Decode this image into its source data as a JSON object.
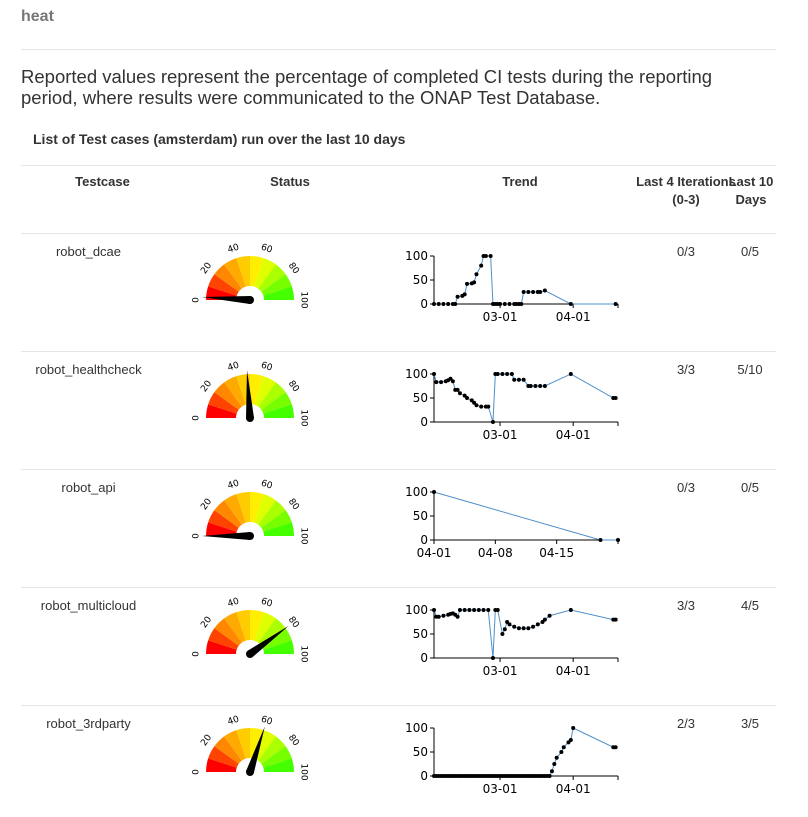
{
  "page": {
    "title": "heat",
    "description": "Reported values represent the percentage of completed CI tests during the reporting period, where results were communicated to the ONAP Test Database.",
    "list_title": "List of Test cases (amsterdam) run over the last 10 days"
  },
  "table": {
    "headers": {
      "testcase": "Testcase",
      "status": "Status",
      "trend": "Trend",
      "last4": "Last 4 Iterations (0-3)",
      "last10": "Last 10 Days"
    },
    "rows": [
      {
        "testcase": "robot_dcae",
        "last4": "0/3",
        "last10": "0/5"
      },
      {
        "testcase": "robot_healthcheck",
        "last4": "3/3",
        "last10": "5/10"
      },
      {
        "testcase": "robot_api",
        "last4": "0/3",
        "last10": "0/5"
      },
      {
        "testcase": "robot_multicloud",
        "last4": "3/3",
        "last10": "4/5"
      },
      {
        "testcase": "robot_3rdparty",
        "last4": "2/3",
        "last10": "3/5"
      }
    ]
  },
  "gauge": {
    "tick_labels": [
      "0",
      "20",
      "40",
      "60",
      "80",
      "100"
    ],
    "segment_colors": [
      "#ff0000",
      "#ff4400",
      "#ff8800",
      "#ffaa00",
      "#ffcc00",
      "#ffee00",
      "#dfff00",
      "#aaff00",
      "#77ff00",
      "#44ff00"
    ],
    "needle_color": "#000000"
  },
  "colors": {
    "trend_line": "#4f8fc9",
    "trend_point": "#000000"
  },
  "chart_data": [
    {
      "type": "gauge",
      "series": [
        {
          "name": "robot_dcae",
          "value": 2
        }
      ]
    },
    {
      "type": "gauge",
      "series": [
        {
          "name": "robot_healthcheck",
          "value": 48
        }
      ]
    },
    {
      "type": "gauge",
      "series": [
        {
          "name": "robot_api",
          "value": 0
        }
      ]
    },
    {
      "type": "gauge",
      "series": [
        {
          "name": "robot_multicloud",
          "value": 80
        }
      ]
    },
    {
      "type": "gauge",
      "series": [
        {
          "name": "robot_3rdparty",
          "value": 60
        }
      ]
    },
    {
      "type": "line",
      "x_ticks": [
        {
          "label": "03-01",
          "date": "2017-03-01"
        },
        {
          "label": "04-01",
          "date": "2017-04-01"
        }
      ],
      "y_ticks": [
        "0",
        "50",
        "100"
      ],
      "xlim": [
        "2017-02-01",
        "2017-04-20"
      ],
      "ylim": [
        0,
        100
      ],
      "series": [
        {
          "values": [
            [
              "2017-02-01",
              0
            ],
            [
              "2017-02-03",
              0
            ],
            [
              "2017-02-05",
              0
            ],
            [
              "2017-02-07",
              0
            ],
            [
              "2017-02-09",
              0
            ],
            [
              "2017-02-10",
              0
            ],
            [
              "2017-02-11",
              15
            ],
            [
              "2017-02-13",
              17
            ],
            [
              "2017-02-14",
              20
            ],
            [
              "2017-02-15",
              42
            ],
            [
              "2017-02-17",
              43
            ],
            [
              "2017-02-18",
              45
            ],
            [
              "2017-02-19",
              62
            ],
            [
              "2017-02-21",
              80
            ],
            [
              "2017-02-22",
              100
            ],
            [
              "2017-02-23",
              100
            ],
            [
              "2017-02-25",
              100
            ],
            [
              "2017-02-26",
              0
            ],
            [
              "2017-02-27",
              0
            ],
            [
              "2017-02-28",
              0
            ],
            [
              "2017-03-01",
              0
            ],
            [
              "2017-03-03",
              0
            ],
            [
              "2017-03-05",
              0
            ],
            [
              "2017-03-07",
              0
            ],
            [
              "2017-03-08",
              0
            ],
            [
              "2017-03-09",
              0
            ],
            [
              "2017-03-10",
              0
            ],
            [
              "2017-03-11",
              25
            ],
            [
              "2017-03-13",
              25
            ],
            [
              "2017-03-15",
              25
            ],
            [
              "2017-03-17",
              25
            ],
            [
              "2017-03-18",
              25
            ],
            [
              "2017-03-20",
              28
            ],
            [
              "2017-03-31",
              0
            ],
            [
              "2017-04-19",
              0
            ]
          ]
        }
      ]
    },
    {
      "type": "line",
      "x_ticks": [
        {
          "label": "03-01",
          "date": "2017-03-01"
        },
        {
          "label": "04-01",
          "date": "2017-04-01"
        }
      ],
      "y_ticks": [
        "0",
        "50",
        "100"
      ],
      "xlim": [
        "2017-02-01",
        "2017-04-20"
      ],
      "ylim": [
        0,
        100
      ],
      "series": [
        {
          "values": [
            [
              "2017-02-01",
              100
            ],
            [
              "2017-02-02",
              83
            ],
            [
              "2017-02-04",
              83
            ],
            [
              "2017-02-06",
              85
            ],
            [
              "2017-02-07",
              87
            ],
            [
              "2017-02-08",
              90
            ],
            [
              "2017-02-09",
              85
            ],
            [
              "2017-02-10",
              67
            ],
            [
              "2017-02-11",
              67
            ],
            [
              "2017-02-12",
              60
            ],
            [
              "2017-02-14",
              55
            ],
            [
              "2017-02-15",
              50
            ],
            [
              "2017-02-17",
              45
            ],
            [
              "2017-02-18",
              40
            ],
            [
              "2017-02-19",
              35
            ],
            [
              "2017-02-21",
              32
            ],
            [
              "2017-02-23",
              32
            ],
            [
              "2017-02-24",
              32
            ],
            [
              "2017-02-26",
              0
            ],
            [
              "2017-02-27",
              100
            ],
            [
              "2017-02-28",
              100
            ],
            [
              "2017-03-02",
              100
            ],
            [
              "2017-03-04",
              100
            ],
            [
              "2017-03-06",
              100
            ],
            [
              "2017-03-07",
              88
            ],
            [
              "2017-03-09",
              88
            ],
            [
              "2017-03-11",
              88
            ],
            [
              "2017-03-13",
              75
            ],
            [
              "2017-03-14",
              75
            ],
            [
              "2017-03-16",
              75
            ],
            [
              "2017-03-18",
              75
            ],
            [
              "2017-03-20",
              75
            ],
            [
              "2017-03-31",
              100
            ],
            [
              "2017-04-18",
              50
            ],
            [
              "2017-04-19",
              50
            ]
          ]
        }
      ]
    },
    {
      "type": "line",
      "x_ticks": [
        {
          "label": "04-01",
          "date": "2017-04-01"
        },
        {
          "label": "04-08",
          "date": "2017-04-08"
        },
        {
          "label": "04-15",
          "date": "2017-04-15"
        }
      ],
      "y_ticks": [
        "0",
        "50",
        "100"
      ],
      "xlim": [
        "2017-04-01",
        "2017-04-22"
      ],
      "ylim": [
        0,
        100
      ],
      "series": [
        {
          "values": [
            [
              "2017-04-01",
              100
            ],
            [
              "2017-04-20",
              0
            ],
            [
              "2017-04-22",
              0
            ]
          ]
        }
      ]
    },
    {
      "type": "line",
      "x_ticks": [
        {
          "label": "03-01",
          "date": "2017-03-01"
        },
        {
          "label": "04-01",
          "date": "2017-04-01"
        }
      ],
      "y_ticks": [
        "0",
        "50",
        "100"
      ],
      "xlim": [
        "2017-02-01",
        "2017-04-20"
      ],
      "ylim": [
        0,
        100
      ],
      "series": [
        {
          "values": [
            [
              "2017-02-01",
              100
            ],
            [
              "2017-02-02",
              86
            ],
            [
              "2017-02-03",
              86
            ],
            [
              "2017-02-05",
              88
            ],
            [
              "2017-02-07",
              90
            ],
            [
              "2017-02-08",
              92
            ],
            [
              "2017-02-09",
              93
            ],
            [
              "2017-02-10",
              90
            ],
            [
              "2017-02-11",
              86
            ],
            [
              "2017-02-12",
              100
            ],
            [
              "2017-02-14",
              100
            ],
            [
              "2017-02-16",
              100
            ],
            [
              "2017-02-18",
              100
            ],
            [
              "2017-02-20",
              100
            ],
            [
              "2017-02-22",
              100
            ],
            [
              "2017-02-24",
              100
            ],
            [
              "2017-02-26",
              0
            ],
            [
              "2017-02-27",
              100
            ],
            [
              "2017-02-28",
              100
            ],
            [
              "2017-03-02",
              50
            ],
            [
              "2017-03-03",
              60
            ],
            [
              "2017-03-04",
              75
            ],
            [
              "2017-03-05",
              70
            ],
            [
              "2017-03-07",
              65
            ],
            [
              "2017-03-09",
              62
            ],
            [
              "2017-03-11",
              62
            ],
            [
              "2017-03-13",
              62
            ],
            [
              "2017-03-15",
              65
            ],
            [
              "2017-03-17",
              70
            ],
            [
              "2017-03-19",
              75
            ],
            [
              "2017-03-20",
              80
            ],
            [
              "2017-03-22",
              88
            ],
            [
              "2017-03-31",
              100
            ],
            [
              "2017-04-18",
              80
            ],
            [
              "2017-04-19",
              80
            ]
          ]
        }
      ]
    },
    {
      "type": "line",
      "x_ticks": [
        {
          "label": "03-01",
          "date": "2017-03-01"
        },
        {
          "label": "04-01",
          "date": "2017-04-01"
        }
      ],
      "y_ticks": [
        "0",
        "50",
        "100"
      ],
      "xlim": [
        "2017-02-01",
        "2017-04-20"
      ],
      "ylim": [
        0,
        100
      ],
      "series": [
        {
          "values": [
            [
              "2017-02-01",
              0
            ],
            [
              "2017-02-02",
              0
            ],
            [
              "2017-02-03",
              0
            ],
            [
              "2017-02-04",
              0
            ],
            [
              "2017-02-05",
              0
            ],
            [
              "2017-02-06",
              0
            ],
            [
              "2017-02-07",
              0
            ],
            [
              "2017-02-08",
              0
            ],
            [
              "2017-02-09",
              0
            ],
            [
              "2017-02-10",
              0
            ],
            [
              "2017-02-11",
              0
            ],
            [
              "2017-02-12",
              0
            ],
            [
              "2017-02-13",
              0
            ],
            [
              "2017-02-14",
              0
            ],
            [
              "2017-02-15",
              0
            ],
            [
              "2017-02-16",
              0
            ],
            [
              "2017-02-17",
              0
            ],
            [
              "2017-02-18",
              0
            ],
            [
              "2017-02-19",
              0
            ],
            [
              "2017-02-20",
              0
            ],
            [
              "2017-02-21",
              0
            ],
            [
              "2017-02-22",
              0
            ],
            [
              "2017-02-23",
              0
            ],
            [
              "2017-02-24",
              0
            ],
            [
              "2017-02-25",
              0
            ],
            [
              "2017-02-26",
              0
            ],
            [
              "2017-02-27",
              0
            ],
            [
              "2017-02-28",
              0
            ],
            [
              "2017-03-01",
              0
            ],
            [
              "2017-03-02",
              0
            ],
            [
              "2017-03-03",
              0
            ],
            [
              "2017-03-04",
              0
            ],
            [
              "2017-03-05",
              0
            ],
            [
              "2017-03-06",
              0
            ],
            [
              "2017-03-07",
              0
            ],
            [
              "2017-03-08",
              0
            ],
            [
              "2017-03-09",
              0
            ],
            [
              "2017-03-10",
              0
            ],
            [
              "2017-03-11",
              0
            ],
            [
              "2017-03-12",
              0
            ],
            [
              "2017-03-13",
              0
            ],
            [
              "2017-03-14",
              0
            ],
            [
              "2017-03-15",
              0
            ],
            [
              "2017-03-16",
              0
            ],
            [
              "2017-03-17",
              0
            ],
            [
              "2017-03-18",
              0
            ],
            [
              "2017-03-19",
              0
            ],
            [
              "2017-03-20",
              0
            ],
            [
              "2017-03-21",
              0
            ],
            [
              "2017-03-22",
              0
            ],
            [
              "2017-03-23",
              10
            ],
            [
              "2017-03-24",
              25
            ],
            [
              "2017-03-25",
              38
            ],
            [
              "2017-03-27",
              50
            ],
            [
              "2017-03-28",
              60
            ],
            [
              "2017-03-30",
              70
            ],
            [
              "2017-03-31",
              75
            ],
            [
              "2017-04-01",
              100
            ],
            [
              "2017-04-18",
              60
            ],
            [
              "2017-04-19",
              60
            ]
          ]
        }
      ]
    }
  ]
}
